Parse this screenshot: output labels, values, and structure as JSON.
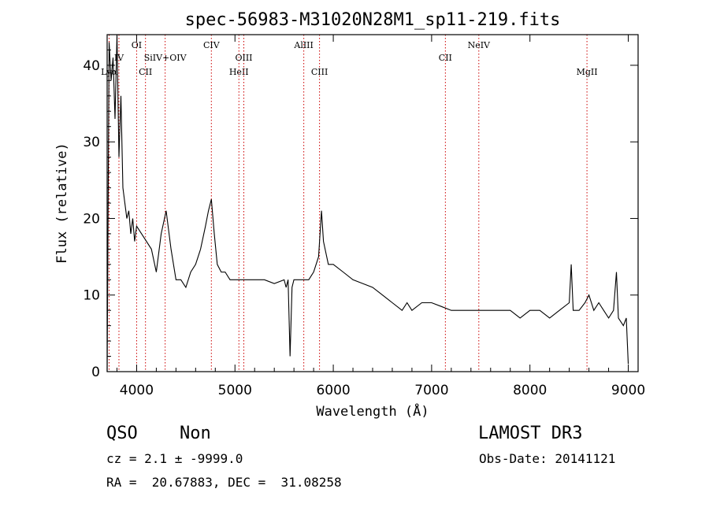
{
  "chart_data": {
    "type": "line",
    "title": "spec-56983-M31020N28M1_sp11-219.fits",
    "xlabel": "Wavelength (Å)",
    "ylabel": "Flux (relative)",
    "xlim": [
      3700,
      9100
    ],
    "ylim": [
      0,
      44
    ],
    "xticks": [
      4000,
      5000,
      6000,
      7000,
      8000,
      9000
    ],
    "yticks": [
      0,
      10,
      20,
      30,
      40
    ],
    "grid": false,
    "line_color": "#000000",
    "marker_color": "#cc0000",
    "lines": [
      {
        "name": "IV",
        "wavelength": 3820,
        "row": 0
      },
      {
        "name": "Lyα",
        "wavelength": 3720,
        "row": 1
      },
      {
        "name": "OI",
        "wavelength": 4000,
        "row": -1
      },
      {
        "name": "CII",
        "wavelength": 4090,
        "row": 1
      },
      {
        "name": "SiIV+OIV",
        "wavelength": 4290,
        "row": 0
      },
      {
        "name": "CIV",
        "wavelength": 4760,
        "row": -1
      },
      {
        "name": "HeII",
        "wavelength": 5040,
        "row": 1
      },
      {
        "name": "OIII",
        "wavelength": 5090,
        "row": 0
      },
      {
        "name": "AlIII",
        "wavelength": 5700,
        "row": -1
      },
      {
        "name": "CIII",
        "wavelength": 5860,
        "row": 1
      },
      {
        "name": "CII",
        "wavelength": 7140,
        "row": 0
      },
      {
        "name": "NeIV",
        "wavelength": 7480,
        "row": -1
      },
      {
        "name": "MgII",
        "wavelength": 8580,
        "row": 1
      }
    ],
    "x": [
      3700,
      3720,
      3740,
      3760,
      3780,
      3800,
      3820,
      3840,
      3860,
      3880,
      3900,
      3920,
      3940,
      3960,
      3980,
      4000,
      4050,
      4100,
      4150,
      4200,
      4250,
      4300,
      4350,
      4400,
      4450,
      4500,
      4550,
      4600,
      4650,
      4700,
      4730,
      4760,
      4790,
      4820,
      4860,
      4900,
      4950,
      5000,
      5100,
      5200,
      5300,
      5400,
      5500,
      5520,
      5540,
      5560,
      5580,
      5600,
      5700,
      5750,
      5800,
      5850,
      5880,
      5900,
      5950,
      6000,
      6100,
      6200,
      6300,
      6400,
      6500,
      6600,
      6700,
      6750,
      6800,
      6900,
      7000,
      7100,
      7200,
      7300,
      7400,
      7500,
      7600,
      7700,
      7800,
      7900,
      8000,
      8100,
      8200,
      8300,
      8400,
      8420,
      8440,
      8500,
      8560,
      8600,
      8650,
      8700,
      8750,
      8800,
      8850,
      8880,
      8900,
      8950,
      8980,
      9000
    ],
    "y": [
      0,
      43,
      38,
      41,
      33,
      44,
      28,
      36,
      24,
      22,
      20,
      21,
      18,
      20,
      17,
      19,
      18,
      17,
      16,
      13,
      18,
      21,
      16,
      12,
      12,
      11,
      13,
      14,
      16,
      19,
      21,
      22.5,
      18,
      14,
      13,
      13,
      12,
      12,
      12,
      12,
      12,
      11.5,
      12,
      11,
      12,
      2,
      11,
      12,
      12,
      12,
      13,
      15,
      21,
      17,
      14,
      14,
      13,
      12,
      11.5,
      11,
      10,
      9,
      8,
      9,
      8,
      9,
      9,
      8.5,
      8,
      8,
      8,
      8,
      8,
      8,
      8,
      7,
      8,
      8,
      7,
      8,
      9,
      14,
      8,
      8,
      9,
      10,
      8,
      9,
      8,
      7,
      8,
      13,
      7,
      6,
      7,
      1
    ]
  },
  "info": {
    "class": "QSO",
    "subclass": "Non",
    "survey": "LAMOST DR3",
    "cz": "cz = 2.1 ± -9999.0",
    "obs_date": "Obs-Date: 20141121",
    "radec": "RA =  20.67883, DEC =  31.08258"
  }
}
